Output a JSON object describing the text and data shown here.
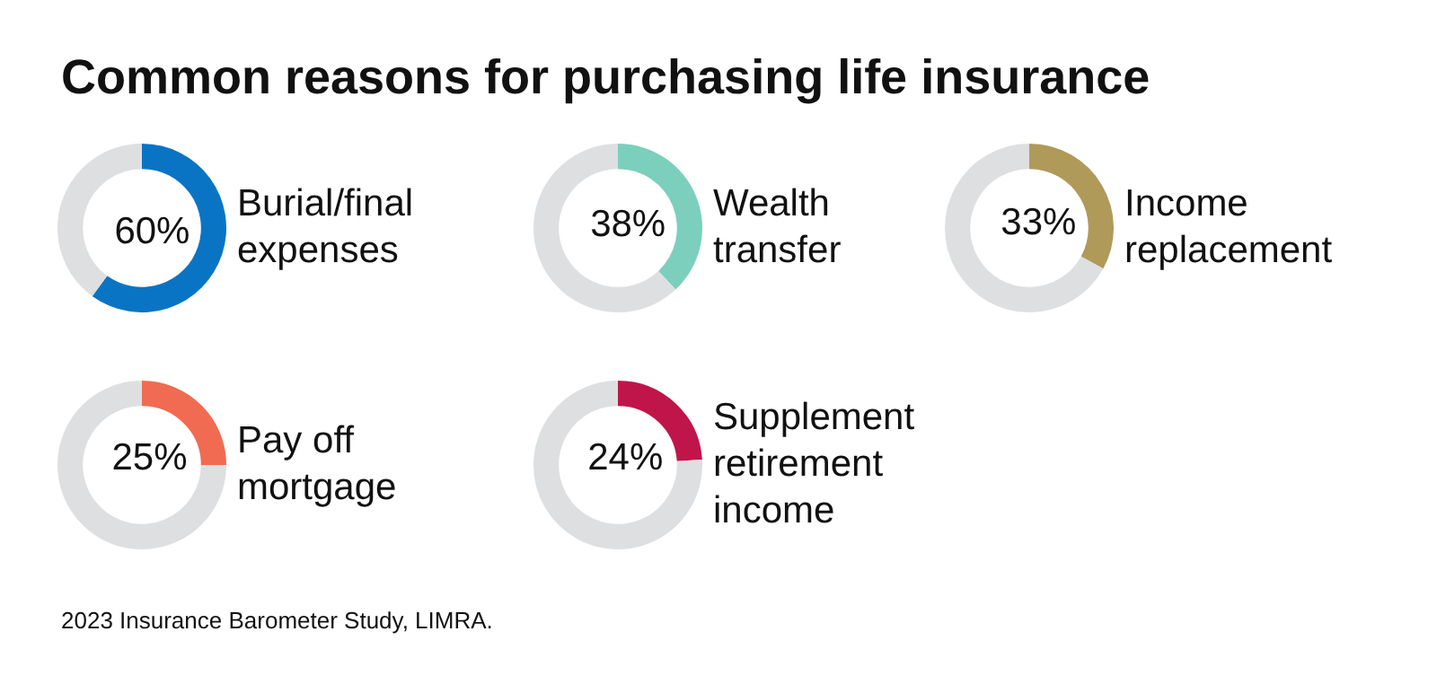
{
  "chart_data": [
    {
      "type": "donut",
      "title": "Common reasons for purchasing life insurance",
      "categories": [
        "Burial/final expenses",
        null
      ],
      "values": [
        60,
        40
      ],
      "colors": [
        "#0a74c4",
        "#dedfe1"
      ],
      "value_labels": [
        "60%",
        null
      ]
    },
    {
      "type": "donut",
      "categories": [
        "Wealth transfer",
        null
      ],
      "values": [
        38,
        62
      ],
      "colors": [
        "#7ccfbd",
        "#dedfe1"
      ],
      "value_labels": [
        "38%",
        null
      ]
    },
    {
      "type": "donut",
      "categories": [
        "Income replacement",
        null
      ],
      "values": [
        33,
        67
      ],
      "colors": [
        "#b09a5a",
        "#dedfe1"
      ],
      "value_labels": [
        "33%",
        null
      ]
    },
    {
      "type": "donut",
      "categories": [
        "Pay off mortgage",
        null
      ],
      "values": [
        25,
        75
      ],
      "colors": [
        "#f06b51",
        "#dedfe1"
      ],
      "value_labels": [
        "25%",
        null
      ]
    },
    {
      "type": "donut",
      "categories": [
        "Supplement retirement income",
        null
      ],
      "values": [
        24,
        76
      ],
      "colors": [
        "#c0154a",
        "#dedfe1"
      ],
      "value_labels": [
        "24%",
        null
      ],
      "annotations": [
        "2023 Insurance Barometer Study, LIMRA."
      ]
    }
  ]
}
